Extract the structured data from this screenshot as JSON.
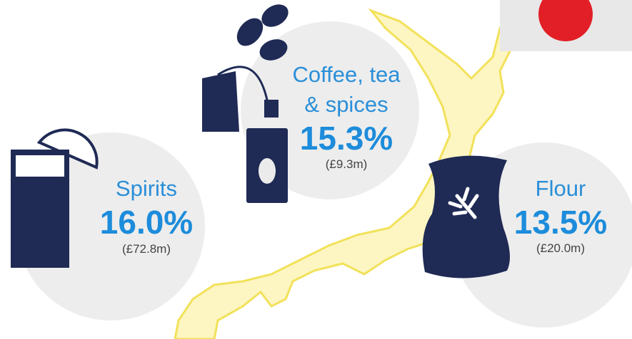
{
  "items": [
    {
      "label_lines": [
        "Coffee, tea",
        "& spices"
      ],
      "share": "15.3%",
      "amount": "(£9.3m)"
    },
    {
      "label_lines": [
        "Spirits"
      ],
      "share": "16.0%",
      "amount": "(£72.8m)"
    },
    {
      "label_lines": [
        "Flour"
      ],
      "share": "13.5%",
      "amount": "(£20.0m)"
    }
  ]
}
